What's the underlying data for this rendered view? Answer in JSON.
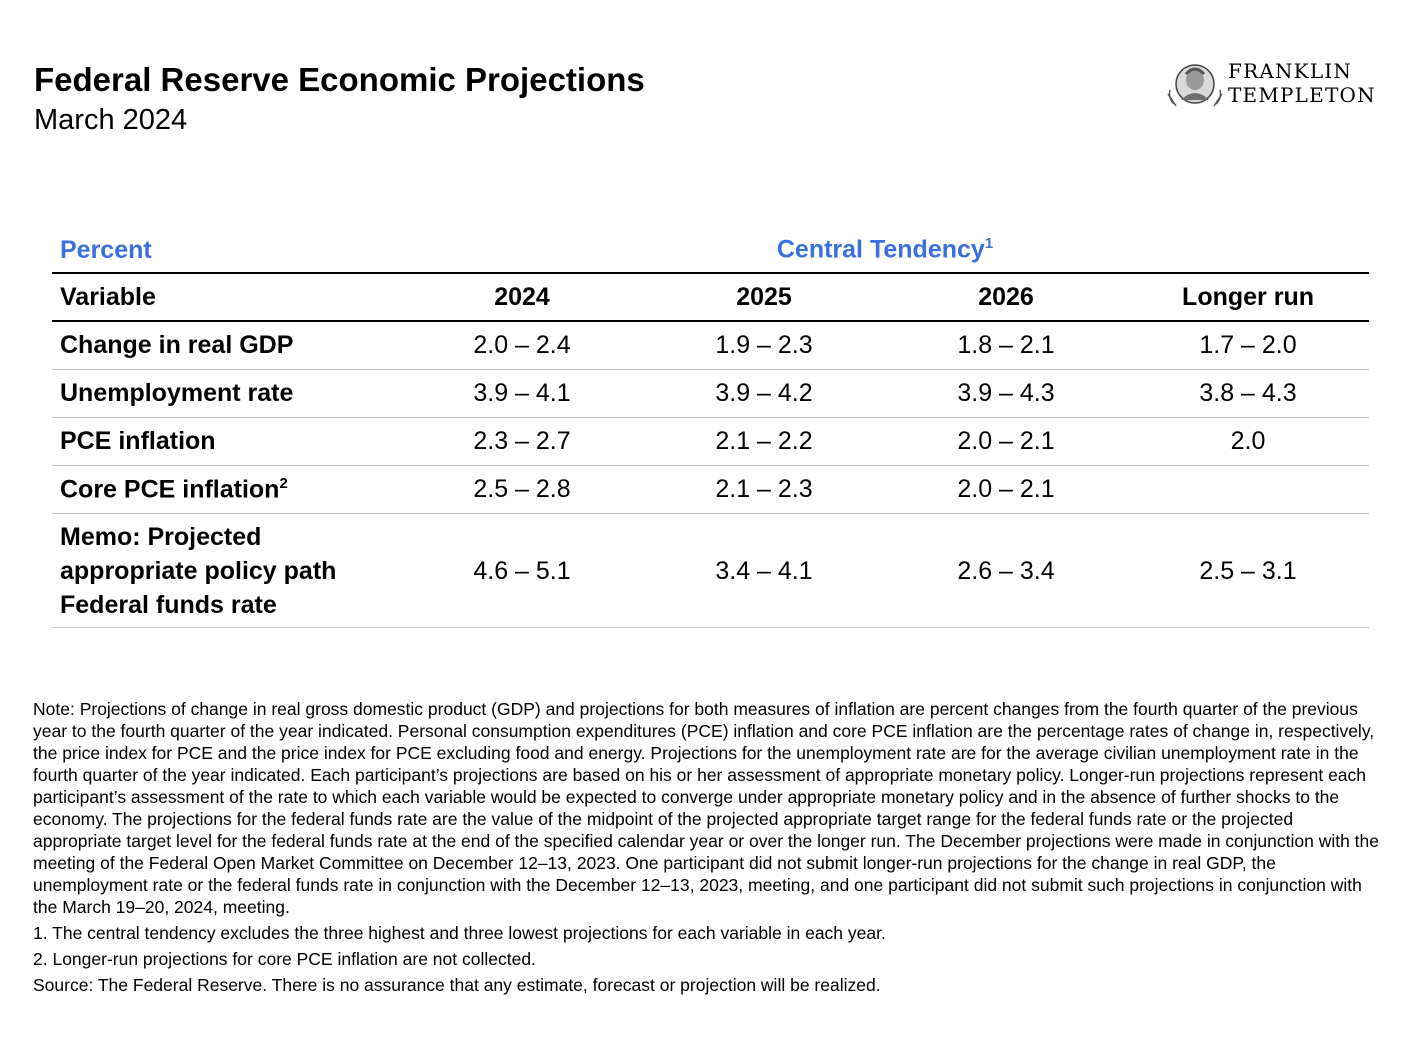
{
  "header": {
    "title": "Federal Reserve Economic Projections",
    "subtitle": "March 2024",
    "logo_line1": "FRANKLIN",
    "logo_line2": "TEMPLETON"
  },
  "table": {
    "unit_label": "Percent",
    "group_label": "Central Tendency",
    "group_sup": "1",
    "columns": [
      "Variable",
      "2024",
      "2025",
      "2026",
      "Longer run"
    ],
    "rows": [
      {
        "label": "Change in real GDP",
        "sup": "",
        "values": [
          "2.0 – 2.4",
          "1.9 – 2.3",
          "1.8 – 2.1",
          "1.7 – 2.0"
        ]
      },
      {
        "label": "Unemployment rate",
        "sup": "",
        "values": [
          "3.9 – 4.1",
          "3.9 – 4.2",
          "3.9 – 4.3",
          "3.8 – 4.3"
        ]
      },
      {
        "label": "PCE inflation",
        "sup": "",
        "values": [
          "2.3 – 2.7",
          "2.1 – 2.2",
          "2.0 – 2.1",
          "2.0"
        ]
      },
      {
        "label": "Core PCE inflation",
        "sup": "2",
        "values": [
          "2.5 – 2.8",
          "2.1 – 2.3",
          "2.0 – 2.1",
          ""
        ]
      }
    ],
    "memo": {
      "line1": "Memo: Projected",
      "line2": "appropriate policy path",
      "line3": "Federal funds rate",
      "values": [
        "4.6 – 5.1",
        "3.4 – 4.1",
        "2.6 – 3.4",
        "2.5 – 3.1"
      ]
    }
  },
  "notes": {
    "note": "Note: Projections of change in real gross domestic product (GDP) and projections for both measures of inflation are percent changes from the fourth quarter of the previous year to the fourth quarter of the year indicated. Personal consumption expenditures (PCE) inflation and core PCE inflation are the percentage rates of change in, respectively, the price index for PCE and the price index for PCE excluding food and energy. Projections for the unemployment rate are for the average civilian unemployment rate in the fourth quarter of the year indicated. Each participant’s projections are based on his or her assessment of appropriate monetary policy. Longer-run projections represent each participant’s assessment of the rate to which each variable would be expected to converge under appropriate monetary policy and in the absence of further shocks to the economy. The projections for the federal funds rate are the value of the midpoint of the projected appropriate target range for the federal funds rate or the projected appropriate target level for the federal funds rate at the end of the specified calendar year or over the longer run. The December projections were made in conjunction with the meeting of the Federal Open Market Committee on December 12–13, 2023. One participant did not submit longer-run projections for the change in real GDP, the unemployment rate or the federal funds rate in conjunction with the December 12–13, 2023, meeting, and one participant did not submit such projections in conjunction with the March 19–20, 2024, meeting.",
    "footnote1": "1. The central tendency excludes the three highest and three lowest projections for each variable in each year.",
    "footnote2": "2. Longer-run projections for core PCE inflation are not collected.",
    "source": "Source: The Federal Reserve. There is no assurance that any estimate, forecast or projection will be realized."
  },
  "colors": {
    "accent_blue": "#3a6fe0"
  }
}
